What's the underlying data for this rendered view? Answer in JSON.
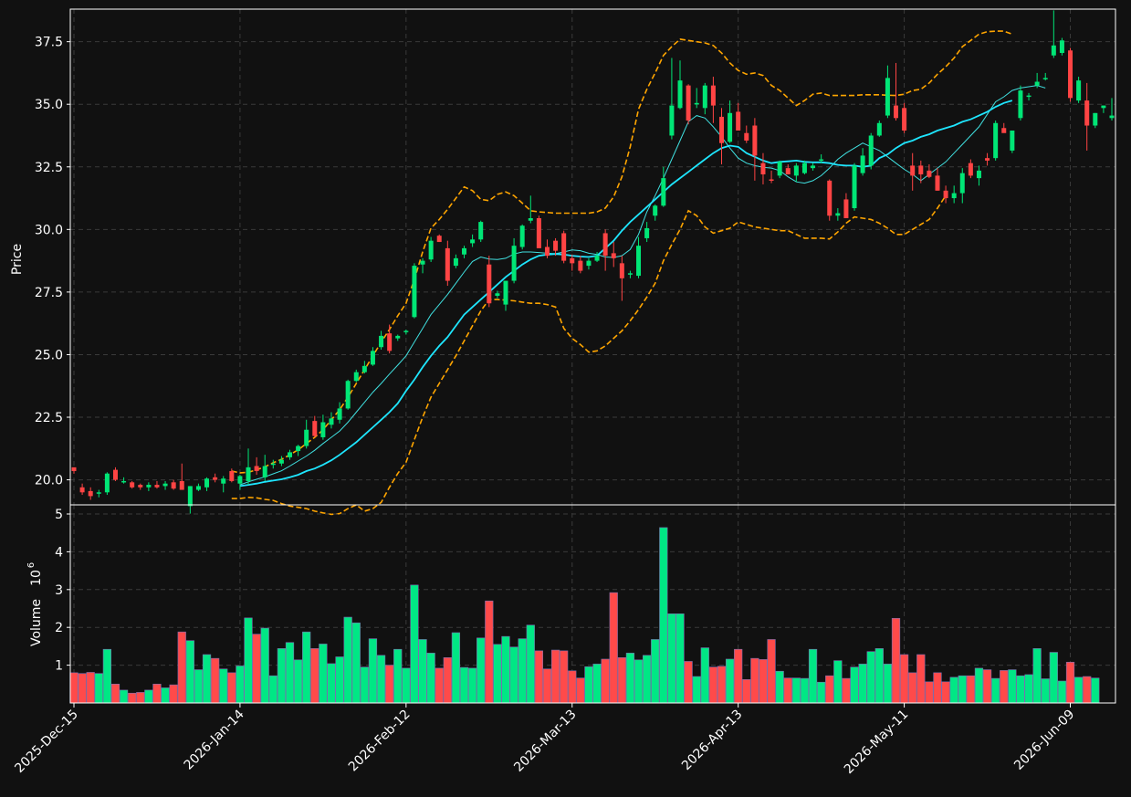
{
  "chart_data": {
    "type": "candlestick",
    "ylabel": "Price",
    "volume_label": "Volume",
    "volume_exponent": "10",
    "volume_exponent_power": "6",
    "price_ylim": [
      19.0,
      38.8
    ],
    "price_ticks": [
      "20.0",
      "22.5",
      "25.0",
      "27.5",
      "30.0",
      "32.5",
      "35.0",
      "37.5"
    ],
    "volume_ylim": [
      0,
      5
    ],
    "volume_ticks": [
      "1",
      "2",
      "3",
      "4",
      "5"
    ],
    "x_tick_labels": [
      "2025-Dec-15",
      "2026-Jan-14",
      "2026-Feb-12",
      "2026-Mar-13",
      "2026-Apr-13",
      "2026-May-11",
      "2026-Jun-09"
    ],
    "x_tick_index": [
      0,
      20,
      40,
      60,
      80,
      100,
      120
    ],
    "grid": true,
    "colors": {
      "up": "#00e676",
      "down": "#ff4444",
      "volume_up": "#00e785",
      "volume_down": "#ff4a4a",
      "ma_fast": "#40e0e0",
      "ma_slow": "#1ee6ff",
      "bollinger": "#ffa500",
      "background": "#111111",
      "grid": "#3a3a3a"
    },
    "candles": [
      [
        20.5,
        20.5,
        20.25,
        20.35
      ],
      [
        19.7,
        19.85,
        19.4,
        19.5
      ],
      [
        19.55,
        19.7,
        19.2,
        19.35
      ],
      [
        19.5,
        19.6,
        19.3,
        19.5
      ],
      [
        19.5,
        20.3,
        19.4,
        20.25
      ],
      [
        20.4,
        20.5,
        19.95,
        20.0
      ],
      [
        19.95,
        20.1,
        19.85,
        19.95
      ],
      [
        19.9,
        19.95,
        19.65,
        19.7
      ],
      [
        19.8,
        19.85,
        19.6,
        19.7
      ],
      [
        19.7,
        19.9,
        19.55,
        19.8
      ],
      [
        19.8,
        19.95,
        19.65,
        19.7
      ],
      [
        19.75,
        19.95,
        19.6,
        19.85
      ],
      [
        19.9,
        20.0,
        19.6,
        19.65
      ],
      [
        19.95,
        20.65,
        19.6,
        19.6
      ],
      [
        18.95,
        19.75,
        18.65,
        19.75
      ],
      [
        19.6,
        19.85,
        19.55,
        19.75
      ],
      [
        19.7,
        20.1,
        19.55,
        20.05
      ],
      [
        20.1,
        20.25,
        19.9,
        20.0
      ],
      [
        19.85,
        20.15,
        19.5,
        20.05
      ],
      [
        20.35,
        20.45,
        19.9,
        19.95
      ],
      [
        19.85,
        20.2,
        19.6,
        20.15
      ],
      [
        19.95,
        21.25,
        19.8,
        20.5
      ],
      [
        20.55,
        20.9,
        20.2,
        20.35
      ],
      [
        20.1,
        21.0,
        19.95,
        20.55
      ],
      [
        20.6,
        20.8,
        20.45,
        20.65
      ],
      [
        20.65,
        20.95,
        20.55,
        20.8
      ],
      [
        20.9,
        21.2,
        20.8,
        21.1
      ],
      [
        21.15,
        21.4,
        20.95,
        21.35
      ],
      [
        21.35,
        22.4,
        21.25,
        22.0
      ],
      [
        22.35,
        22.55,
        21.7,
        21.75
      ],
      [
        21.7,
        22.6,
        21.6,
        22.3
      ],
      [
        22.2,
        22.7,
        22.05,
        22.45
      ],
      [
        22.4,
        23.1,
        22.25,
        22.85
      ],
      [
        22.85,
        24.0,
        22.8,
        23.95
      ],
      [
        23.95,
        24.4,
        23.9,
        24.3
      ],
      [
        24.3,
        24.75,
        24.25,
        24.55
      ],
      [
        24.6,
        25.3,
        24.55,
        25.15
      ],
      [
        25.3,
        25.95,
        25.2,
        25.75
      ],
      [
        25.85,
        26.2,
        25.05,
        25.15
      ],
      [
        25.65,
        25.8,
        25.55,
        25.75
      ],
      [
        25.9,
        26.0,
        25.8,
        25.95
      ],
      [
        26.5,
        28.65,
        26.45,
        28.55
      ],
      [
        28.6,
        28.85,
        28.25,
        28.75
      ],
      [
        28.8,
        29.7,
        28.7,
        29.55
      ],
      [
        29.75,
        29.8,
        29.5,
        29.5
      ],
      [
        29.25,
        29.55,
        27.75,
        27.95
      ],
      [
        28.55,
        29.0,
        28.45,
        28.85
      ],
      [
        29.0,
        29.35,
        28.85,
        29.25
      ],
      [
        29.45,
        29.8,
        29.3,
        29.6
      ],
      [
        29.6,
        30.35,
        29.5,
        30.3
      ],
      [
        28.6,
        28.95,
        26.9,
        27.05
      ],
      [
        27.35,
        27.55,
        27.25,
        27.45
      ],
      [
        27.0,
        27.95,
        26.75,
        27.95
      ],
      [
        27.95,
        29.65,
        27.85,
        29.35
      ],
      [
        29.3,
        30.2,
        29.2,
        30.15
      ],
      [
        30.35,
        31.35,
        30.25,
        30.45
      ],
      [
        30.45,
        30.55,
        29.25,
        29.25
      ],
      [
        29.3,
        29.6,
        28.85,
        28.95
      ],
      [
        29.55,
        29.65,
        28.95,
        29.15
      ],
      [
        29.85,
        29.95,
        28.65,
        28.75
      ],
      [
        28.85,
        29.0,
        28.35,
        28.65
      ],
      [
        28.75,
        28.95,
        28.25,
        28.35
      ],
      [
        28.55,
        28.85,
        28.4,
        28.75
      ],
      [
        28.75,
        29.1,
        28.7,
        28.95
      ],
      [
        29.85,
        30.0,
        28.35,
        28.95
      ],
      [
        29.05,
        29.5,
        28.5,
        28.85
      ],
      [
        28.65,
        28.95,
        27.15,
        28.05
      ],
      [
        28.25,
        28.35,
        28.05,
        28.25
      ],
      [
        28.15,
        29.7,
        28.05,
        29.35
      ],
      [
        29.65,
        30.3,
        29.5,
        30.05
      ],
      [
        30.55,
        31.0,
        30.35,
        30.95
      ],
      [
        30.95,
        32.5,
        30.9,
        32.05
      ],
      [
        33.75,
        36.85,
        33.6,
        34.95
      ],
      [
        34.85,
        36.75,
        34.8,
        35.95
      ],
      [
        35.75,
        35.8,
        34.2,
        34.35
      ],
      [
        35.05,
        35.65,
        34.85,
        35.05
      ],
      [
        34.85,
        35.85,
        34.6,
        35.75
      ],
      [
        35.75,
        36.1,
        34.25,
        34.95
      ],
      [
        34.5,
        34.85,
        32.6,
        33.45
      ],
      [
        33.5,
        35.15,
        33.45,
        34.65
      ],
      [
        34.7,
        35.05,
        33.95,
        33.95
      ],
      [
        33.85,
        34.15,
        33.45,
        33.55
      ],
      [
        34.15,
        34.45,
        31.95,
        32.95
      ],
      [
        32.65,
        33.05,
        31.8,
        32.2
      ],
      [
        32.0,
        32.35,
        31.85,
        31.95
      ],
      [
        32.15,
        32.75,
        32.05,
        32.7
      ],
      [
        32.45,
        32.6,
        32.3,
        32.2
      ],
      [
        32.15,
        32.65,
        31.9,
        32.55
      ],
      [
        32.25,
        32.75,
        32.2,
        32.65
      ],
      [
        32.45,
        32.65,
        32.35,
        32.55
      ],
      [
        32.8,
        33.0,
        32.65,
        32.8
      ],
      [
        31.95,
        32.0,
        30.35,
        30.55
      ],
      [
        30.55,
        30.85,
        30.35,
        30.65
      ],
      [
        31.2,
        31.45,
        30.45,
        30.45
      ],
      [
        30.85,
        32.65,
        30.75,
        32.55
      ],
      [
        32.25,
        33.25,
        32.15,
        32.95
      ],
      [
        32.55,
        33.85,
        32.4,
        33.75
      ],
      [
        33.75,
        34.35,
        33.7,
        34.25
      ],
      [
        34.55,
        36.55,
        34.45,
        36.05
      ],
      [
        34.95,
        36.65,
        34.35,
        34.45
      ],
      [
        34.85,
        35.05,
        33.85,
        33.95
      ],
      [
        32.55,
        33.05,
        31.55,
        32.15
      ],
      [
        32.55,
        32.75,
        31.85,
        32.2
      ],
      [
        32.35,
        32.6,
        32.05,
        32.1
      ],
      [
        32.15,
        32.45,
        31.55,
        31.55
      ],
      [
        31.55,
        31.75,
        31.05,
        31.25
      ],
      [
        31.25,
        31.75,
        31.05,
        31.45
      ],
      [
        31.45,
        32.45,
        31.05,
        32.25
      ],
      [
        32.65,
        32.8,
        32.05,
        32.15
      ],
      [
        32.05,
        32.55,
        31.75,
        32.35
      ],
      [
        32.85,
        33.05,
        32.55,
        32.75
      ],
      [
        32.85,
        34.35,
        32.75,
        34.25
      ],
      [
        34.05,
        34.25,
        33.95,
        33.85
      ],
      [
        33.15,
        33.85,
        33.05,
        33.95
      ],
      [
        34.45,
        35.75,
        34.35,
        35.55
      ],
      [
        35.35,
        35.45,
        35.15,
        35.35
      ],
      [
        35.75,
        36.25,
        35.65,
        35.9
      ],
      [
        36.05,
        36.25,
        35.95,
        36.05
      ],
      [
        36.95,
        38.75,
        36.85,
        37.35
      ],
      [
        37.05,
        37.65,
        36.95,
        37.55
      ],
      [
        37.15,
        37.25,
        35.1,
        35.25
      ],
      [
        35.15,
        36.1,
        35.05,
        35.95
      ],
      [
        35.15,
        35.85,
        33.15,
        34.15
      ],
      [
        34.15,
        34.65,
        34.05,
        34.65
      ],
      [
        34.85,
        34.95,
        34.65,
        34.95
      ],
      [
        34.45,
        35.25,
        34.35,
        34.55
      ]
    ],
    "volume": [
      0.8,
      0.78,
      0.81,
      0.78,
      1.42,
      0.5,
      0.34,
      0.26,
      0.28,
      0.34,
      0.5,
      0.4,
      0.48,
      1.88,
      1.65,
      0.88,
      1.28,
      1.18,
      0.9,
      0.8,
      0.98,
      2.25,
      1.82,
      1.98,
      0.72,
      1.44,
      1.6,
      1.14,
      1.88,
      1.44,
      1.56,
      1.04,
      1.22,
      2.27,
      2.12,
      0.95,
      1.7,
      1.26,
      1.0,
      1.42,
      0.92,
      3.12,
      1.68,
      1.32,
      0.92,
      1.2,
      1.86,
      0.94,
      0.92,
      1.72,
      2.7,
      1.55,
      1.76,
      1.48,
      1.7,
      2.06,
      1.38,
      0.9,
      1.4,
      1.38,
      0.85,
      0.66,
      0.96,
      1.03,
      1.16,
      2.92,
      1.2,
      1.32,
      1.14,
      1.26,
      1.68,
      4.64,
      2.36,
      2.36,
      1.1,
      0.7,
      1.46,
      0.95,
      0.97,
      1.16,
      1.42,
      0.62,
      1.18,
      1.15,
      1.68,
      0.84,
      0.66,
      0.66,
      0.65,
      1.42,
      0.55,
      0.72,
      1.12,
      0.65,
      0.95,
      1.03,
      1.36,
      1.44,
      1.03,
      2.24,
      1.28,
      0.8,
      1.28,
      0.56,
      0.8,
      0.56,
      0.68,
      0.72,
      0.72,
      0.92,
      0.88,
      0.65,
      0.86,
      0.88,
      0.72,
      0.75,
      1.44,
      0.64,
      1.34,
      0.58,
      1.08,
      0.68,
      0.7,
      0.66
    ],
    "ma_fast": {
      "start": 20,
      "values": [
        19.8,
        19.92,
        20.02,
        20.12,
        20.24,
        20.36,
        20.55,
        20.75,
        20.95,
        21.18,
        21.45,
        21.7,
        21.95,
        22.3,
        22.7,
        23.1,
        23.5,
        23.85,
        24.22,
        24.58,
        24.95,
        25.5,
        26.05,
        26.6,
        27.0,
        27.4,
        27.85,
        28.3,
        28.72,
        28.9,
        28.82,
        28.8,
        28.85,
        29.02,
        29.1,
        29.1,
        29.08,
        29.05,
        29.03,
        29.1,
        29.18,
        29.15,
        29.05,
        29.0,
        28.9,
        28.88,
        28.95,
        29.2,
        29.8,
        30.7,
        31.35,
        32.05,
        32.8,
        33.55,
        34.3,
        34.55,
        34.45,
        34.1,
        33.7,
        33.25,
        32.85,
        32.65,
        32.55,
        32.48,
        32.45,
        32.35,
        32.1,
        31.9,
        31.85,
        31.95,
        32.15,
        32.45,
        32.8,
        33.05,
        33.25,
        33.45,
        33.3,
        33.15,
        32.9,
        32.65,
        32.4,
        32.2,
        31.95,
        32.2,
        32.45,
        32.7,
        33.05,
        33.4,
        33.75,
        34.1,
        34.6,
        35.1,
        35.3,
        35.55,
        35.65,
        35.7,
        35.75,
        35.65
      ]
    },
    "ma_slow": {
      "start": 20,
      "values": [
        19.75,
        19.8,
        19.85,
        19.92,
        19.97,
        20.02,
        20.1,
        20.2,
        20.35,
        20.45,
        20.6,
        20.78,
        21.0,
        21.25,
        21.5,
        21.8,
        22.1,
        22.4,
        22.7,
        23.05,
        23.55,
        24.0,
        24.5,
        24.95,
        25.35,
        25.7,
        26.15,
        26.6,
        26.9,
        27.2,
        27.5,
        27.8,
        28.1,
        28.35,
        28.6,
        28.8,
        28.95,
        29.0,
        29.02,
        29.0,
        28.95,
        28.92,
        28.9,
        28.95,
        29.25,
        29.55,
        29.95,
        30.3,
        30.6,
        30.9,
        31.2,
        31.5,
        31.8,
        32.05,
        32.3,
        32.55,
        32.8,
        33.05,
        33.25,
        33.35,
        33.3,
        33.05,
        32.9,
        32.75,
        32.65,
        32.7,
        32.72,
        32.75,
        32.7,
        32.68,
        32.68,
        32.65,
        32.58,
        32.55,
        32.55,
        32.5,
        32.55,
        32.85,
        33.0,
        33.25,
        33.45,
        33.55,
        33.7,
        33.8,
        33.95,
        34.05,
        34.15,
        34.3,
        34.4,
        34.55,
        34.7,
        34.9,
        35.05,
        35.15
      ]
    },
    "boll_upper": {
      "start": 19,
      "values": [
        20.35,
        20.28,
        20.3,
        20.4,
        20.52,
        20.68,
        20.82,
        21.0,
        21.2,
        21.45,
        21.7,
        22.0,
        22.4,
        22.8,
        23.3,
        23.85,
        24.4,
        24.95,
        25.5,
        26.0,
        26.55,
        27.05,
        28.0,
        29.1,
        30.05,
        30.4,
        30.8,
        31.25,
        31.7,
        31.55,
        31.2,
        31.15,
        31.4,
        31.5,
        31.35,
        31.05,
        30.75,
        30.7,
        30.68,
        30.65,
        30.65,
        30.65,
        30.65,
        30.65,
        30.7,
        30.85,
        31.3,
        32.1,
        33.3,
        34.8,
        35.6,
        36.25,
        36.95,
        37.3,
        37.6,
        37.55,
        37.5,
        37.45,
        37.35,
        37.05,
        36.65,
        36.35,
        36.2,
        36.25,
        36.15,
        35.75,
        35.55,
        35.25,
        34.95,
        35.15,
        35.4,
        35.45,
        35.35,
        35.35,
        35.35,
        35.35,
        35.38,
        35.38,
        35.38,
        35.36,
        35.35,
        35.4,
        35.55,
        35.6,
        35.85,
        36.2,
        36.5,
        36.85,
        37.3,
        37.55,
        37.8,
        37.9,
        37.92,
        37.92,
        37.8
      ]
    },
    "boll_lower": {
      "start": 19,
      "values": [
        19.25,
        19.25,
        19.3,
        19.28,
        19.22,
        19.18,
        19.05,
        18.95,
        18.9,
        18.85,
        18.75,
        18.68,
        18.62,
        18.65,
        18.85,
        19.0,
        18.75,
        18.85,
        19.1,
        19.7,
        20.25,
        20.7,
        21.6,
        22.5,
        23.3,
        23.85,
        24.4,
        24.95,
        25.55,
        26.15,
        26.75,
        27.2,
        27.2,
        27.18,
        27.15,
        27.1,
        27.05,
        27.05,
        27.0,
        26.9,
        26.05,
        25.65,
        25.4,
        25.1,
        25.15,
        25.35,
        25.65,
        25.95,
        26.35,
        26.8,
        27.3,
        27.85,
        28.75,
        29.4,
        30.0,
        30.75,
        30.55,
        30.1,
        29.85,
        29.95,
        30.05,
        30.3,
        30.2,
        30.1,
        30.05,
        30.0,
        29.95,
        29.95,
        29.8,
        29.65,
        29.65,
        29.65,
        29.62,
        29.9,
        30.25,
        30.5,
        30.45,
        30.4,
        30.25,
        30.05,
        29.8,
        29.8,
        30.0,
        30.2,
        30.4,
        30.85,
        31.35
      ]
    }
  }
}
